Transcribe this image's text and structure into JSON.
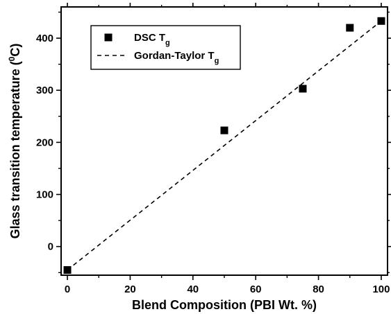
{
  "chart_data": {
    "type": "scatter",
    "title": "",
    "xlabel": "Blend Composition (PBI Wt. %)",
    "ylabel": "Glass transition temperature (",
    "ylabel_sup": "0",
    "ylabel_tail": "C)",
    "xlim": [
      -2,
      102
    ],
    "ylim": [
      -55,
      460
    ],
    "x_ticks": [
      0,
      20,
      40,
      60,
      80,
      100
    ],
    "y_ticks": [
      0,
      100,
      200,
      300,
      400
    ],
    "x_minor_step": 10,
    "y_minor_step": 50,
    "grid": false,
    "legend": {
      "position": "top-left",
      "entries": [
        {
          "main": "DSC T",
          "sub": "g",
          "marker": "square"
        },
        {
          "main": "Gordan-Taylor T",
          "sub": "g",
          "marker": "dashed-line"
        }
      ]
    },
    "series": [
      {
        "name": "DSC Tg",
        "kind": "points",
        "marker": "square",
        "x": [
          0,
          50,
          75,
          90,
          100
        ],
        "y": [
          -45,
          223,
          303,
          420,
          433
        ]
      },
      {
        "name": "Gordan-Taylor Tg",
        "kind": "line",
        "style": "dashed",
        "x": [
          0,
          100
        ],
        "y": [
          -45,
          433
        ]
      }
    ],
    "colors": {
      "axis": "#000000",
      "marker": "#000000",
      "line": "#000000",
      "background": "#ffffff"
    }
  }
}
